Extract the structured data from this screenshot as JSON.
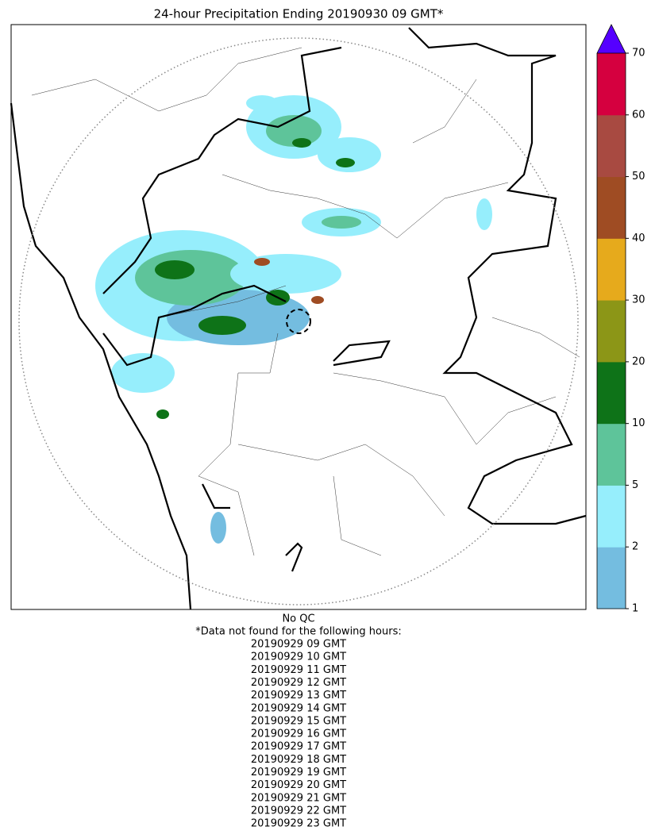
{
  "title": "24-hour Precipitation Ending 20190930 09 GMT*",
  "colorbar": {
    "ticks": [
      1,
      2,
      5,
      10,
      20,
      30,
      40,
      50,
      60,
      70
    ],
    "colors": [
      "#74bde0",
      "#96eefc",
      "#5ec49a",
      "#0e7318",
      "#8c9617",
      "#e6aa1c",
      "#9f4c23",
      "#a84a41",
      "#d5003f"
    ],
    "extend_color": "#5500ff"
  },
  "footer": {
    "note": "No QC",
    "heading": "*Data not found for the following hours:",
    "hours": [
      "20190929 09 GMT",
      "20190929 10 GMT",
      "20190929 11 GMT",
      "20190929 12 GMT",
      "20190929 13 GMT",
      "20190929 14 GMT",
      "20190929 15 GMT",
      "20190929 16 GMT",
      "20190929 17 GMT",
      "20190929 18 GMT",
      "20190929 19 GMT",
      "20190929 20 GMT",
      "20190929 21 GMT",
      "20190929 22 GMT",
      "20190929 23 GMT"
    ]
  }
}
